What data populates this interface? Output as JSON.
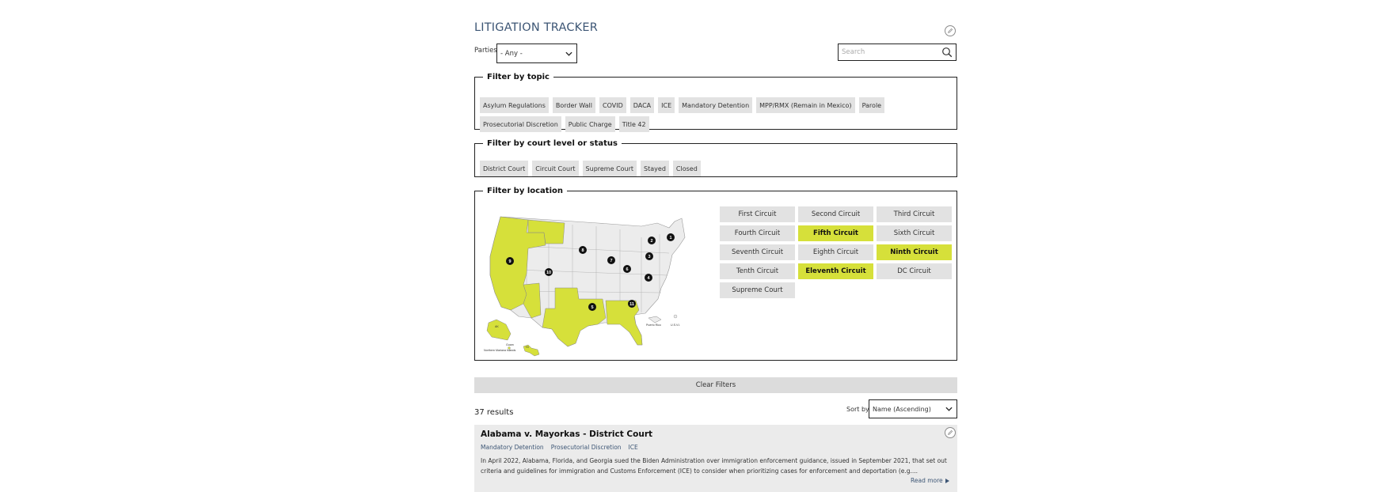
{
  "page": {
    "title": "LITIGATION TRACKER"
  },
  "parties": {
    "label": "Parties",
    "value": "- Any -"
  },
  "search": {
    "placeholder": "Search"
  },
  "topic_filter": {
    "legend": "Filter by topic",
    "items": [
      "Asylum Regulations",
      "Border Wall",
      "COVID",
      "DACA",
      "ICE",
      "Mandatory Detention",
      "MPP/RMX (Remain in Mexico)",
      "Parole",
      "Prosecutorial Discretion",
      "Public Charge",
      "Title 42"
    ]
  },
  "court_filter": {
    "legend": "Filter by court level or status",
    "items": [
      "District Court",
      "Circuit Court",
      "Supreme Court",
      "Stayed",
      "Closed"
    ]
  },
  "location_filter": {
    "legend": "Filter by location",
    "map": {
      "territory_labels": [
        "AK",
        "Guam",
        "HI",
        "Northern Mariana Islands",
        "Puerto Rico",
        "U.S.V.I."
      ],
      "circuit_markers": [
        "1",
        "2",
        "3",
        "4",
        "5",
        "6",
        "7",
        "8",
        "9",
        "10",
        "11"
      ],
      "highlight_color": "#d6e03a"
    },
    "circuits": [
      {
        "label": "First Circuit",
        "active": false
      },
      {
        "label": "Second Circuit",
        "active": false
      },
      {
        "label": "Third Circuit",
        "active": false
      },
      {
        "label": "Fourth Circuit",
        "active": false
      },
      {
        "label": "Fifth Circuit",
        "active": true
      },
      {
        "label": "Sixth Circuit",
        "active": false
      },
      {
        "label": "Seventh Circuit",
        "active": false
      },
      {
        "label": "Eighth Circuit",
        "active": false
      },
      {
        "label": "Ninth Circuit",
        "active": true
      },
      {
        "label": "Tenth Circuit",
        "active": false
      },
      {
        "label": "Eleventh Circuit",
        "active": true
      },
      {
        "label": "DC Circuit",
        "active": false
      },
      {
        "label": "Supreme Court",
        "active": false
      }
    ]
  },
  "clear_filters": {
    "label": "Clear Filters"
  },
  "results": {
    "count_text": "37 results",
    "sort_label": "Sort by",
    "sort_value": "Name (Ascending)"
  },
  "card": {
    "title": "Alabama v. Mayorkas - District Court",
    "tags": [
      "Mandatory Detention",
      "Prosecutorial Discretion",
      "ICE"
    ],
    "description": "In April 2022, Alabama, Florida, and Georgia sued the Biden Administration over immigration enforcement guidance, issued in September 2021, that set out criteria and guidelines for immigration and Customs Enforcement (ICE) to consider when prioritizing cases for enforcement and deportation (e.g....",
    "read_more": "Read more"
  },
  "colors": {
    "accent": "#d6e03a",
    "title": "#3d5675",
    "chip": "#e2e2e2"
  },
  "icons": {
    "edit": "pencil-icon",
    "search": "search-icon",
    "dropdown": "chevron-down-icon",
    "read_more": "triangle-right-icon"
  }
}
